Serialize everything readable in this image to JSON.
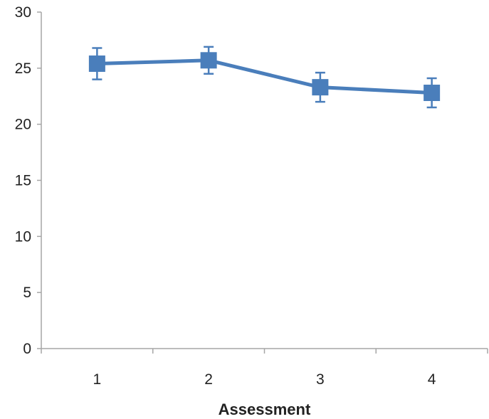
{
  "chart_data": {
    "type": "line",
    "title": "",
    "xlabel": "Assessment",
    "ylabel": "",
    "categories": [
      "1",
      "2",
      "3",
      "4"
    ],
    "series": [
      {
        "values": [
          25.4,
          25.7,
          23.3,
          22.8
        ],
        "error_low": [
          24.0,
          24.5,
          22.0,
          21.5
        ],
        "error_high": [
          26.8,
          26.9,
          24.6,
          24.1
        ],
        "color": "#4a7ebb",
        "marker": "square"
      }
    ],
    "ylim": [
      0,
      30
    ],
    "yticks": [
      "0",
      "5",
      "10",
      "15",
      "20",
      "25",
      "30"
    ],
    "grid": false,
    "legend": "none",
    "axis_color": "#a6a6a6"
  }
}
